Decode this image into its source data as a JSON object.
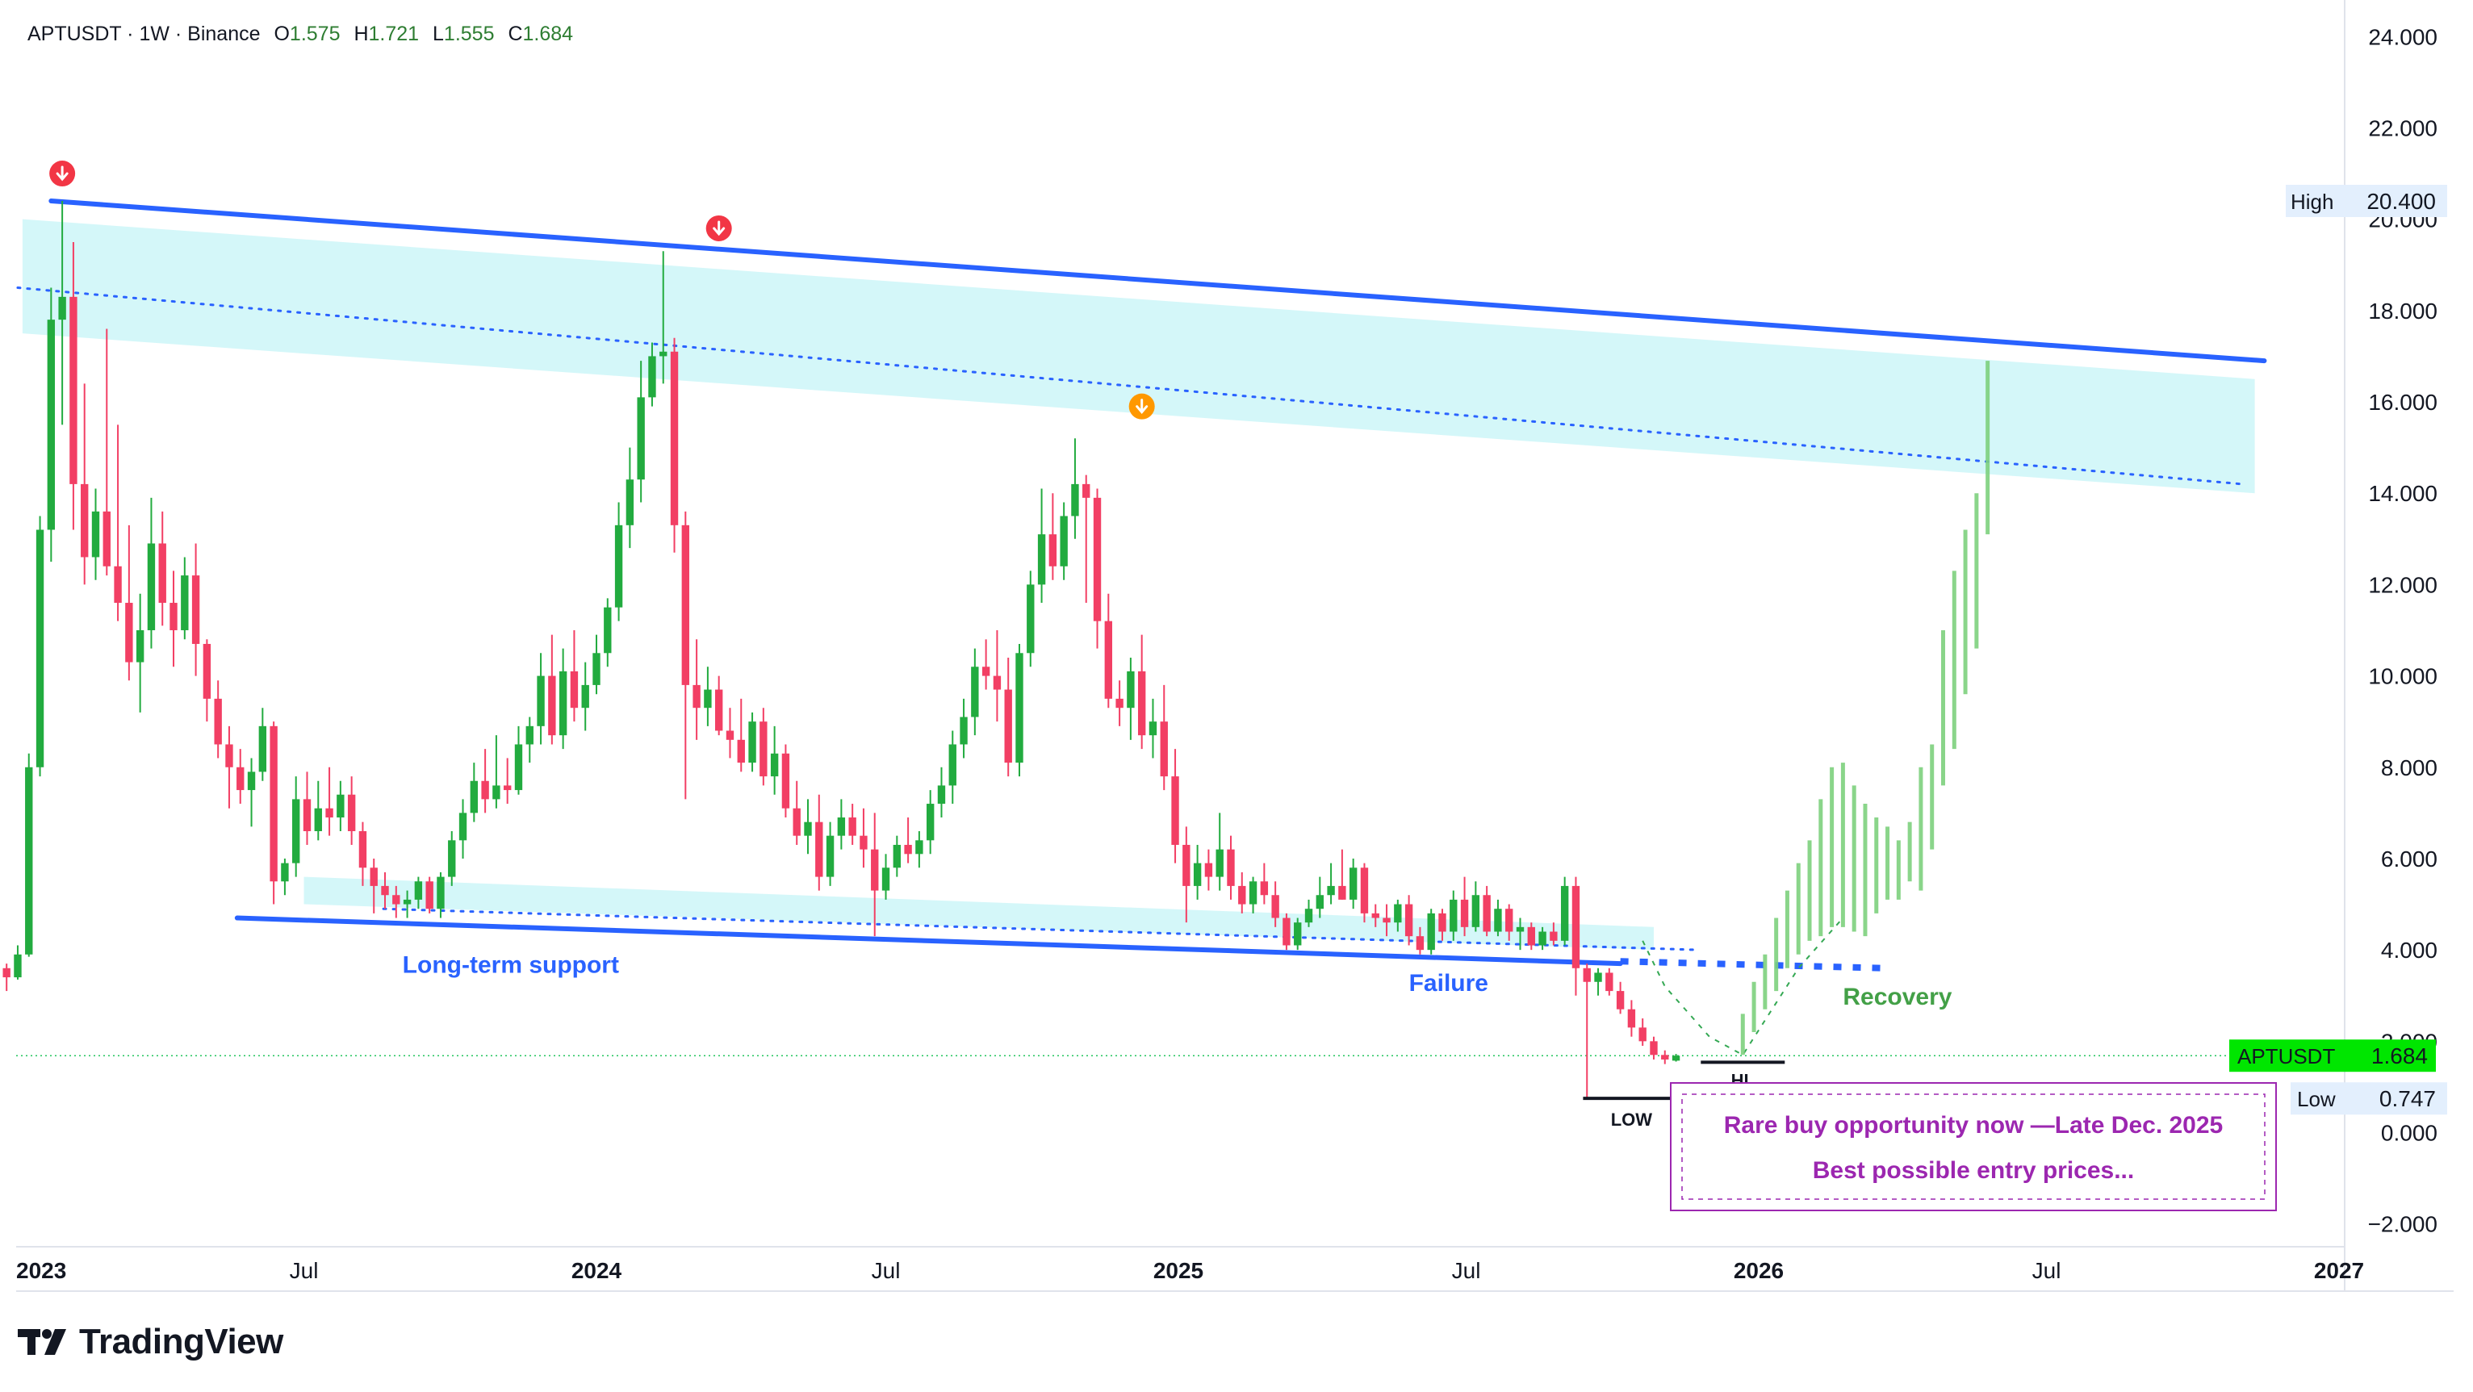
{
  "header": {
    "symbol_line": "APTUSDT · 1W · Binance",
    "o_key": "O",
    "o_val": "1.575",
    "h_key": "H",
    "h_val": "1.721",
    "l_key": "L",
    "l_val": "1.555",
    "c_key": "C",
    "c_val": "1.684"
  },
  "brand": {
    "name": "TradingView"
  },
  "colors": {
    "up": "#22ab3f",
    "down": "#f23f64",
    "trend": "#2962ff",
    "channel": "#cdf6f8",
    "annotation_purple": "#9c27b0",
    "projection": "#7ed17e",
    "price_tag": "#00e600"
  },
  "chart_data": {
    "type": "candlestick",
    "title": "APTUSDT · 1W · Binance",
    "ylim": [
      -2.5,
      24.8
    ],
    "y_ticks": [
      "24.000",
      "22.000",
      "20.000",
      "18.000",
      "16.000",
      "14.000",
      "12.000",
      "10.000",
      "8.000",
      "6.000",
      "4.000",
      "2.000",
      "0.000",
      "−2.000"
    ],
    "y_tick_values": [
      24,
      22,
      20,
      18,
      16,
      14,
      12,
      10,
      8,
      6,
      4,
      2,
      0,
      -2
    ],
    "x_ticks": [
      {
        "label": "2023",
        "date": "2023-01-01",
        "bold": true
      },
      {
        "label": "Jul",
        "date": "2023-07-01",
        "bold": false
      },
      {
        "label": "2024",
        "date": "2024-01-01",
        "bold": true
      },
      {
        "label": "Jul",
        "date": "2024-07-01",
        "bold": false
      },
      {
        "label": "2025",
        "date": "2025-01-01",
        "bold": true
      },
      {
        "label": "Jul",
        "date": "2025-07-01",
        "bold": false
      },
      {
        "label": "2026",
        "date": "2026-01-01",
        "bold": true
      },
      {
        "label": "Jul",
        "date": "2026-07-01",
        "bold": false
      },
      {
        "label": "2027",
        "date": "2027-01-01",
        "bold": true
      }
    ],
    "grid": false,
    "candles_start_date": "2022-12-19",
    "candles": [
      [
        4.0,
        4.0,
        3.5,
        3.6
      ],
      [
        3.6,
        3.7,
        3.1,
        3.4
      ],
      [
        3.4,
        4.1,
        3.35,
        3.9
      ],
      [
        3.9,
        8.3,
        3.85,
        8.0
      ],
      [
        8.0,
        13.5,
        7.8,
        13.2
      ],
      [
        13.2,
        18.5,
        12.5,
        17.8
      ],
      [
        17.8,
        20.4,
        15.5,
        18.3
      ],
      [
        18.3,
        19.5,
        13.2,
        14.2
      ],
      [
        14.2,
        16.4,
        12.0,
        12.6
      ],
      [
        12.6,
        14.1,
        12.1,
        13.6
      ],
      [
        13.6,
        17.6,
        12.2,
        12.4
      ],
      [
        12.4,
        15.5,
        11.2,
        11.6
      ],
      [
        11.6,
        13.3,
        9.9,
        10.3
      ],
      [
        10.3,
        11.8,
        9.2,
        11.0
      ],
      [
        11.0,
        13.9,
        10.6,
        12.9
      ],
      [
        12.9,
        13.6,
        11.1,
        11.6
      ],
      [
        11.6,
        12.3,
        10.2,
        11.0
      ],
      [
        11.0,
        12.6,
        10.8,
        12.2
      ],
      [
        12.2,
        12.9,
        10.0,
        10.7
      ],
      [
        10.7,
        10.8,
        9.0,
        9.5
      ],
      [
        9.5,
        9.9,
        8.2,
        8.5
      ],
      [
        8.5,
        8.9,
        7.1,
        8.0
      ],
      [
        8.0,
        8.4,
        7.2,
        7.5
      ],
      [
        7.5,
        8.2,
        6.7,
        7.9
      ],
      [
        7.9,
        9.3,
        7.7,
        8.9
      ],
      [
        8.9,
        9.0,
        5.0,
        5.5
      ],
      [
        5.5,
        6.0,
        5.2,
        5.9
      ],
      [
        5.9,
        7.8,
        5.6,
        7.3
      ],
      [
        7.3,
        7.9,
        6.3,
        6.6
      ],
      [
        6.6,
        7.7,
        6.4,
        7.1
      ],
      [
        7.1,
        8.0,
        6.5,
        6.9
      ],
      [
        6.9,
        7.7,
        6.6,
        7.4
      ],
      [
        7.4,
        7.8,
        6.3,
        6.6
      ],
      [
        6.6,
        6.8,
        5.4,
        5.8
      ],
      [
        5.8,
        6.0,
        4.8,
        5.4
      ],
      [
        5.4,
        5.7,
        4.9,
        5.2
      ],
      [
        5.2,
        5.4,
        4.7,
        5.0
      ],
      [
        5.0,
        5.3,
        4.7,
        5.1
      ],
      [
        5.1,
        5.6,
        4.9,
        5.5
      ],
      [
        5.5,
        5.6,
        4.8,
        4.9
      ],
      [
        4.9,
        5.7,
        4.7,
        5.6
      ],
      [
        5.6,
        6.6,
        5.4,
        6.4
      ],
      [
        6.4,
        7.3,
        6.0,
        7.0
      ],
      [
        7.0,
        8.1,
        6.8,
        7.7
      ],
      [
        7.7,
        8.4,
        7.0,
        7.3
      ],
      [
        7.3,
        8.7,
        7.1,
        7.6
      ],
      [
        7.6,
        8.2,
        7.2,
        7.5
      ],
      [
        7.5,
        8.9,
        7.4,
        8.5
      ],
      [
        8.5,
        9.1,
        8.1,
        8.9
      ],
      [
        8.9,
        10.5,
        8.5,
        10.0
      ],
      [
        10.0,
        10.9,
        8.5,
        8.7
      ],
      [
        8.7,
        10.6,
        8.4,
        10.1
      ],
      [
        10.1,
        11.0,
        9.0,
        9.3
      ],
      [
        9.3,
        10.3,
        8.8,
        9.8
      ],
      [
        9.8,
        10.9,
        9.6,
        10.5
      ],
      [
        10.5,
        11.7,
        10.2,
        11.5
      ],
      [
        11.5,
        13.8,
        11.2,
        13.3
      ],
      [
        13.3,
        15.0,
        12.8,
        14.3
      ],
      [
        14.3,
        16.9,
        13.8,
        16.1
      ],
      [
        16.1,
        17.3,
        15.9,
        17.0
      ],
      [
        17.0,
        19.3,
        16.4,
        17.1
      ],
      [
        17.1,
        17.4,
        12.7,
        13.3
      ],
      [
        13.3,
        13.6,
        7.3,
        9.8
      ],
      [
        9.8,
        10.8,
        8.6,
        9.3
      ],
      [
        9.3,
        10.2,
        8.9,
        9.7
      ],
      [
        9.7,
        10.0,
        8.7,
        8.8
      ],
      [
        8.8,
        9.3,
        8.2,
        8.6
      ],
      [
        8.6,
        9.5,
        7.9,
        8.1
      ],
      [
        8.1,
        9.2,
        7.9,
        9.0
      ],
      [
        9.0,
        9.3,
        7.6,
        7.8
      ],
      [
        7.8,
        8.9,
        7.4,
        8.3
      ],
      [
        8.3,
        8.5,
        6.9,
        7.1
      ],
      [
        7.1,
        7.7,
        6.3,
        6.5
      ],
      [
        6.5,
        7.3,
        6.1,
        6.8
      ],
      [
        6.8,
        7.4,
        5.3,
        5.6
      ],
      [
        5.6,
        6.8,
        5.4,
        6.5
      ],
      [
        6.5,
        7.3,
        6.2,
        6.9
      ],
      [
        6.9,
        7.2,
        6.3,
        6.5
      ],
      [
        6.5,
        7.1,
        5.8,
        6.2
      ],
      [
        6.2,
        7.0,
        4.3,
        5.3
      ],
      [
        5.3,
        6.1,
        5.1,
        5.8
      ],
      [
        5.8,
        6.5,
        5.6,
        6.3
      ],
      [
        6.3,
        6.9,
        5.9,
        6.1
      ],
      [
        6.1,
        6.6,
        5.8,
        6.4
      ],
      [
        6.4,
        7.5,
        6.1,
        7.2
      ],
      [
        7.2,
        8.0,
        6.9,
        7.6
      ],
      [
        7.6,
        8.8,
        7.2,
        8.5
      ],
      [
        8.5,
        9.5,
        8.2,
        9.1
      ],
      [
        9.1,
        10.6,
        8.7,
        10.2
      ],
      [
        10.2,
        10.8,
        9.7,
        10.0
      ],
      [
        10.0,
        11.0,
        9.0,
        9.7
      ],
      [
        9.7,
        10.4,
        7.8,
        8.1
      ],
      [
        8.1,
        10.7,
        7.8,
        10.5
      ],
      [
        10.5,
        12.3,
        10.2,
        12.0
      ],
      [
        12.0,
        14.1,
        11.6,
        13.1
      ],
      [
        13.1,
        14.0,
        12.1,
        12.4
      ],
      [
        12.4,
        13.8,
        12.1,
        13.5
      ],
      [
        13.5,
        15.2,
        13.0,
        14.2
      ],
      [
        14.2,
        14.4,
        11.6,
        13.9
      ],
      [
        13.9,
        14.1,
        10.6,
        11.2
      ],
      [
        11.2,
        11.8,
        9.3,
        9.5
      ],
      [
        9.5,
        9.9,
        8.9,
        9.3
      ],
      [
        9.3,
        10.4,
        8.6,
        10.1
      ],
      [
        10.1,
        10.9,
        8.4,
        8.7
      ],
      [
        8.7,
        9.5,
        8.2,
        9.0
      ],
      [
        9.0,
        9.8,
        7.5,
        7.8
      ],
      [
        7.8,
        8.4,
        5.9,
        6.3
      ],
      [
        6.3,
        6.7,
        4.6,
        5.4
      ],
      [
        5.4,
        6.3,
        5.1,
        5.9
      ],
      [
        5.9,
        6.2,
        5.3,
        5.6
      ],
      [
        5.6,
        7.0,
        5.3,
        6.2
      ],
      [
        6.2,
        6.5,
        5.1,
        5.4
      ],
      [
        5.4,
        5.7,
        4.8,
        5.0
      ],
      [
        5.0,
        5.6,
        4.8,
        5.5
      ],
      [
        5.5,
        5.9,
        5.0,
        5.2
      ],
      [
        5.2,
        5.5,
        4.5,
        4.7
      ],
      [
        4.7,
        4.8,
        4.0,
        4.1
      ],
      [
        4.1,
        4.7,
        4.0,
        4.6
      ],
      [
        4.6,
        5.1,
        4.5,
        4.9
      ],
      [
        4.9,
        5.6,
        4.7,
        5.2
      ],
      [
        5.2,
        5.9,
        5.0,
        5.4
      ],
      [
        5.4,
        6.2,
        5.1,
        5.1
      ],
      [
        5.1,
        6.0,
        4.9,
        5.8
      ],
      [
        5.8,
        5.9,
        4.6,
        4.8
      ],
      [
        4.8,
        5.0,
        4.5,
        4.7
      ],
      [
        4.7,
        5.0,
        4.3,
        4.6
      ],
      [
        4.6,
        5.1,
        4.4,
        5.0
      ],
      [
        5.0,
        5.2,
        4.1,
        4.3
      ],
      [
        4.3,
        4.5,
        3.9,
        4.0
      ],
      [
        4.0,
        4.9,
        3.9,
        4.8
      ],
      [
        4.8,
        4.9,
        4.2,
        4.4
      ],
      [
        4.4,
        5.3,
        4.2,
        5.1
      ],
      [
        5.1,
        5.6,
        4.3,
        4.5
      ],
      [
        4.5,
        5.5,
        4.4,
        5.2
      ],
      [
        5.2,
        5.4,
        4.3,
        4.4
      ],
      [
        4.4,
        5.1,
        4.3,
        4.9
      ],
      [
        4.9,
        5.0,
        4.2,
        4.4
      ],
      [
        4.4,
        4.7,
        4.0,
        4.5
      ],
      [
        4.5,
        4.6,
        4.0,
        4.1
      ],
      [
        4.1,
        4.5,
        4.0,
        4.4
      ],
      [
        4.4,
        4.6,
        4.1,
        4.2
      ],
      [
        4.2,
        5.6,
        4.1,
        5.4
      ],
      [
        5.4,
        5.6,
        3.0,
        3.6
      ],
      [
        3.6,
        3.7,
        0.75,
        3.3
      ],
      [
        3.3,
        3.6,
        3.0,
        3.5
      ],
      [
        3.5,
        3.6,
        3.0,
        3.1
      ],
      [
        3.1,
        3.3,
        2.6,
        2.7
      ],
      [
        2.7,
        2.9,
        2.1,
        2.3
      ],
      [
        2.3,
        2.5,
        1.9,
        2.0
      ],
      [
        2.0,
        2.1,
        1.6,
        1.7
      ],
      [
        1.7,
        1.8,
        1.5,
        1.6
      ],
      [
        1.575,
        1.721,
        1.555,
        1.684
      ]
    ],
    "projection_bars": [
      [
        1.7,
        2.6
      ],
      [
        2.2,
        3.3
      ],
      [
        2.7,
        3.9
      ],
      [
        3.1,
        4.7
      ],
      [
        3.6,
        5.3
      ],
      [
        3.9,
        5.9
      ],
      [
        4.2,
        6.4
      ],
      [
        4.3,
        7.3
      ],
      [
        4.5,
        8.0
      ],
      [
        4.5,
        8.1
      ],
      [
        4.4,
        7.6
      ],
      [
        4.3,
        7.2
      ],
      [
        4.8,
        6.9
      ],
      [
        5.1,
        6.7
      ],
      [
        5.1,
        6.4
      ],
      [
        5.5,
        6.8
      ],
      [
        5.3,
        8.0
      ],
      [
        6.2,
        8.5
      ],
      [
        7.6,
        11.0
      ],
      [
        8.4,
        12.3
      ],
      [
        9.6,
        13.2
      ],
      [
        10.6,
        14.0
      ],
      [
        13.1,
        16.9
      ]
    ],
    "projection_start_date": "2025-12-22",
    "projection_step_days": 7,
    "projection_guide": [
      {
        "date": "2025-10-20",
        "v": 4.2
      },
      {
        "date": "2025-11-03",
        "v": 3.2
      },
      {
        "date": "2025-12-01",
        "v": 2.1
      },
      {
        "date": "2025-12-22",
        "v": 1.7
      },
      {
        "date": "2026-01-26",
        "v": 3.6
      },
      {
        "date": "2026-02-23",
        "v": 4.7
      }
    ],
    "upper_trendline": [
      {
        "date": "2023-01-23",
        "v": 20.4
      },
      {
        "date": "2026-11-15",
        "v": 16.9
      }
    ],
    "lower_trendline": [
      {
        "date": "2023-05-20",
        "v": 4.7
      },
      {
        "date": "2025-10-06",
        "v": 3.7
      }
    ],
    "upper_dotted": [
      {
        "date": "2023-01-02",
        "v": 18.5
      },
      {
        "date": "2026-11-01",
        "v": 14.2
      }
    ],
    "lower_dotted": [
      {
        "date": "2023-08-20",
        "v": 4.9
      },
      {
        "date": "2025-11-24",
        "v": 4.0
      }
    ],
    "resistance_zone": [
      {
        "date": "2023-01-05",
        "v": 20.0
      },
      {
        "date": "2026-11-09",
        "v": 16.5
      },
      {
        "date": "2026-11-09",
        "v": 14.0
      },
      {
        "date": "2023-01-05",
        "v": 17.5
      }
    ],
    "support_zone": [
      {
        "date": "2023-07-01",
        "v": 5.6
      },
      {
        "date": "2025-10-27",
        "v": 4.5
      },
      {
        "date": "2025-10-27",
        "v": 4.0
      },
      {
        "date": "2023-07-01",
        "v": 5.0
      }
    ],
    "breakdown_retest": [
      {
        "date": "2025-10-06",
        "v": 3.75
      },
      {
        "date": "2026-03-22",
        "v": 3.6
      }
    ],
    "top_markers": [
      {
        "date": "2023-01-30",
        "v": 21.0,
        "color": "red"
      },
      {
        "date": "2024-03-18",
        "v": 19.8,
        "color": "red"
      },
      {
        "date": "2024-12-09",
        "v": 15.9,
        "color": "orange"
      }
    ],
    "levels": {
      "current": {
        "label": "APTUSDT",
        "value": "1.684",
        "v": 1.684
      },
      "high": {
        "label": "High",
        "value": "20.400",
        "v": 20.4
      },
      "low": {
        "label": "Low",
        "value": "0.747",
        "v": 0.747
      }
    },
    "annotations": {
      "long_term_support": {
        "text": "Long-term support",
        "date": "2023-09-01",
        "v": 3.5
      },
      "failure": {
        "text": "Failure",
        "date": "2025-05-26",
        "v": 3.1
      },
      "recovery": {
        "text": "Recovery",
        "date": "2026-02-23",
        "v": 2.8
      },
      "low": {
        "text": "LOW",
        "date": "2025-10-13",
        "v": 0.75
      },
      "hl": {
        "text": "HL",
        "date": "2025-12-22",
        "v": 1.54
      }
    },
    "callout": {
      "line1": "Rare buy opportunity now —Late Dec. 2025",
      "line2": "Best possible entry prices..."
    }
  }
}
